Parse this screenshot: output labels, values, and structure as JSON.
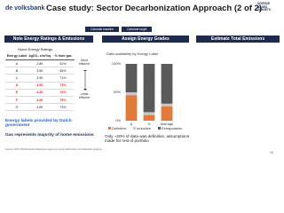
{
  "header": {
    "logo": "de volksbank",
    "title": "Case study: Sector Decarbonization Approach (2 of 2)",
    "sbt_logo": "SCIENCE BASED TARGETS"
  },
  "tabs": [
    "Calculate baseline",
    "Calculate target"
  ],
  "columns": [
    "Note Energy Ratings & Emissions",
    "Assign Energy Grades",
    "Estimate Total Emissions"
  ],
  "table": {
    "title": "Home Energy Ratings",
    "headers": [
      "Energy Label",
      "kgCO₂ e/m²/sq",
      "% from gas"
    ],
    "rows": [
      [
        "A",
        "2.8K",
        "62%"
      ],
      [
        "B",
        "3.5K",
        "65%"
      ],
      [
        "C",
        "3.9K",
        "71%"
      ],
      [
        "D",
        "4.0K",
        "73%"
      ],
      [
        "E",
        "4.2K",
        "74%"
      ],
      [
        "F",
        "4.6K",
        "75%"
      ],
      [
        "G",
        "4.6K",
        "73%"
      ]
    ]
  },
  "efficiency": {
    "top": "Most efficient",
    "bottom": "Least efficient"
  },
  "notes": [
    "Energy labels provided by Dutch government",
    "Gas represents majority of home emissions"
  ],
  "chart_note": "Only ~20% of data was definitive; assumptions made for rest of portfolio",
  "source": "Source: RVO (Netherlands Enterprise Agency) energy label data; de Volksbank analysis",
  "page_number": "18",
  "chart_data": {
    "type": "stacked_bar",
    "title": "Data availability by Energy Label",
    "categories": [
      "A",
      "G",
      "Average"
    ],
    "series": [
      {
        "name": "Definitive",
        "color": "#e07b39",
        "values": [
          45,
          10,
          25
        ]
      },
      {
        "name": "Inductive",
        "color": "#c8c8c8",
        "values": [
          5,
          5,
          5
        ]
      },
      {
        "name": "Extrapolation",
        "color": "#595959",
        "values": [
          50,
          85,
          70
        ]
      }
    ],
    "ylim": [
      0,
      100
    ],
    "yticks": [
      {
        "value": 0,
        "label": "0%"
      },
      {
        "value": 50,
        "label": "50%"
      },
      {
        "value": 100,
        "label": "100%"
      }
    ],
    "grid": true
  }
}
